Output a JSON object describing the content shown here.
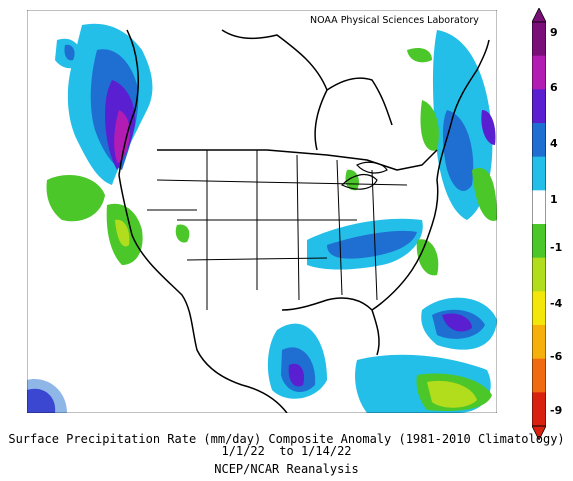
{
  "credit": "NOAA Physical Sciences Laboratory",
  "caption": {
    "line1": "Surface Precipitation Rate (mm/day) Composite Anomaly (1981-2010 Climatology)",
    "line2": "1/1/22  to 1/14/22",
    "line3": "NCEP/NCAR Reanalysis"
  },
  "colorbar": {
    "labels": [
      "9",
      "6",
      "4",
      "1",
      "-1",
      "-4",
      "-6",
      "-9"
    ],
    "colors": [
      "#7a0f7a",
      "#b21cb2",
      "#5a1fd0",
      "#1e6fd1",
      "#23bfe8",
      "#ffffff",
      "#4cc72a",
      "#b2dd1d",
      "#f3e60b",
      "#f6b00c",
      "#f06a12",
      "#d8220f"
    ]
  },
  "map": {
    "region": "North America",
    "anomaly_colors": {
      "strong_wet": "#7a0f7a",
      "very_wet": "#b21cb2",
      "wet_4_6": "#5a1fd0",
      "wet_2_4": "#1e6fd1",
      "wet_1_2": "#23bfe8",
      "dry_1_2": "#4cc72a",
      "dry_2_4": "#b2dd1d",
      "dry_4_6": "#f3e60b"
    }
  }
}
